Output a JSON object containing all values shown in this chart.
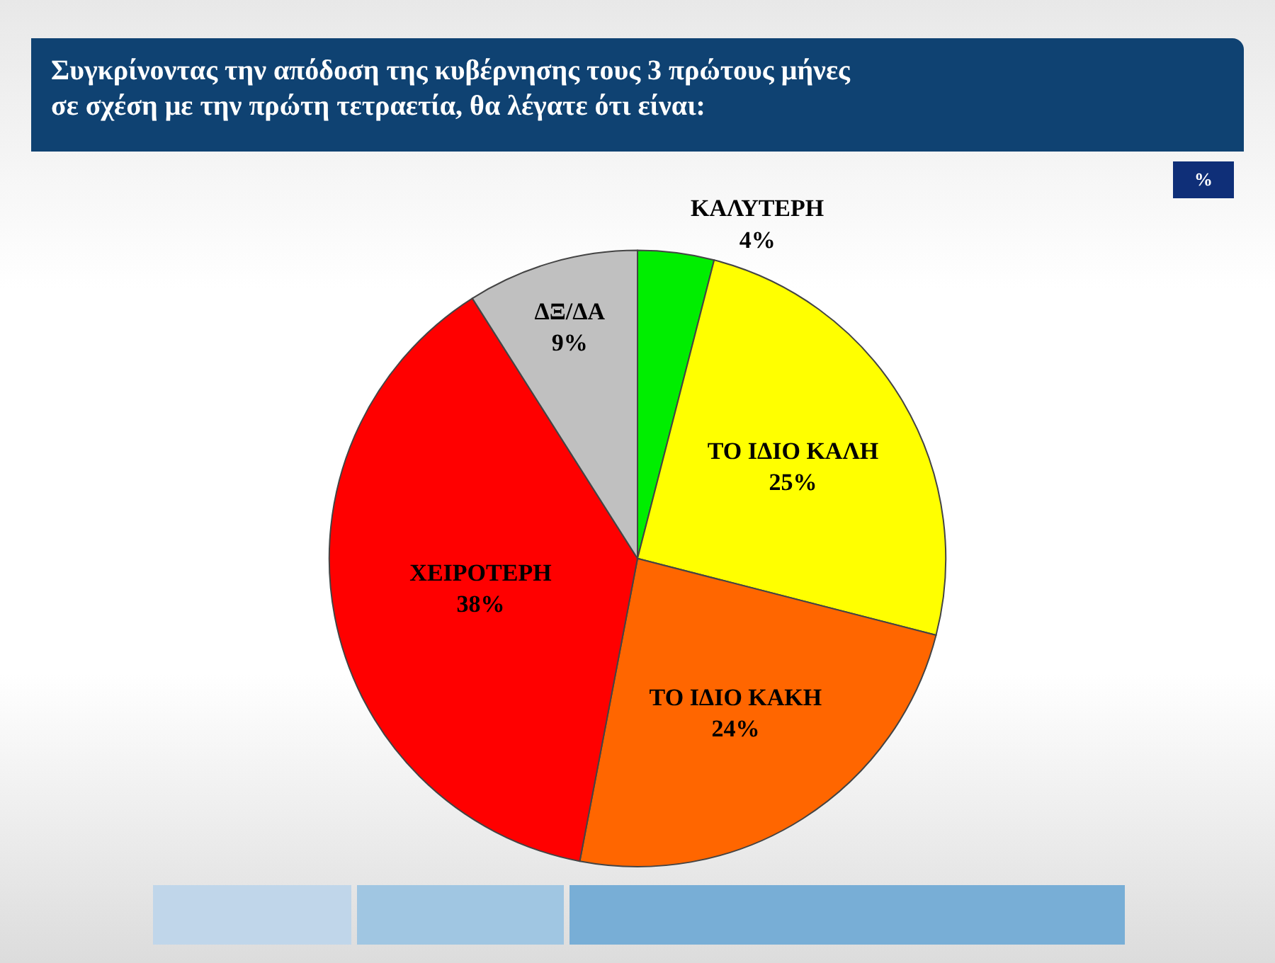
{
  "chart_data": {
    "type": "pie",
    "title": "Συγκρίνοντας την απόδοση της κυβέρνησης τους 3 πρώτους μήνες σε σχέση με την πρώτη τετραετία, θα λέγατε ότι είναι:",
    "annotations": [
      "%"
    ],
    "categories": [
      "ΚΑΛΥΤΕΡΗ",
      "ΤΟ ΙΔΙΟ ΚΑΛΗ",
      "ΤΟ ΙΔΙΟ ΚΑΚΗ",
      "ΧΕΙΡΟΤΕΡΗ",
      "ΔΞ/ΔΑ"
    ],
    "values": [
      4,
      25,
      24,
      38,
      9
    ],
    "value_labels": [
      "4%",
      "25%",
      "24%",
      "38%",
      "9%"
    ],
    "colors": [
      "#00ee00",
      "#ffff00",
      "#ff6600",
      "#ff0000",
      "#c0c0c0"
    ],
    "legend": false
  }
}
